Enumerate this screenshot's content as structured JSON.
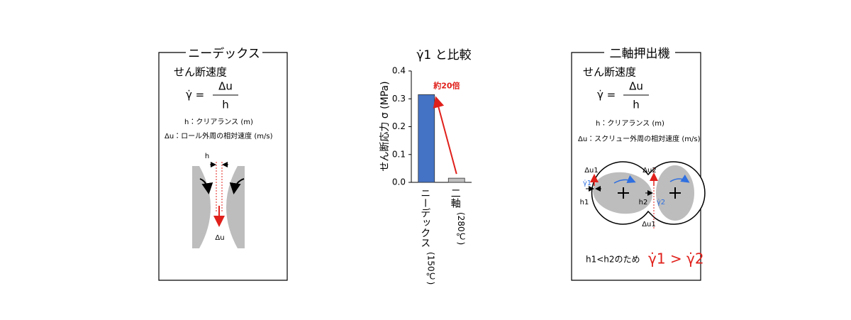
{
  "left_panel": {
    "title": "ニーデックス",
    "heading": "せん断速度",
    "formula": {
      "lhs": "γ̇ =",
      "numerator": "Δu",
      "denominator": "h"
    },
    "definitions": [
      "h：クリアランス (m)",
      "Δu：ロール外周の相対速度 (m/s)"
    ],
    "diagram": {
      "gap_label": "h",
      "velocity_label": "Δu"
    }
  },
  "chart_data": {
    "type": "bar",
    "title": "γ̇1 と比較",
    "y_label": "せん断応力 σ (MPa)",
    "categories": [
      "ニーデックス",
      "二軸"
    ],
    "category_notes": [
      "(150℃)",
      "(280℃)"
    ],
    "values": [
      0.315,
      0.015
    ],
    "colors": [
      "#4472c4",
      "#bfbfbf"
    ],
    "ylim": [
      0,
      0.4
    ],
    "yticks": [
      {
        "value": 0,
        "label": "0.0"
      },
      0.1,
      0.2,
      0.3,
      0.4
    ],
    "annotation": "約20倍"
  },
  "right_panel": {
    "title": "二軸押出機",
    "heading": "せん断速度",
    "formula": {
      "lhs": "γ̇ =",
      "numerator": "Δu",
      "denominator": "h"
    },
    "definitions": [
      "h：クリアランス (m)",
      "Δu：スクリュー外周の相対速度 (m/s)"
    ],
    "diagram": {
      "du1_top": "Δu1",
      "du2": "Δu2",
      "gamma1": "γ̇1",
      "gamma2": "γ̇2",
      "h1": "h1",
      "h2": "h2",
      "du1_bottom": "Δu1"
    },
    "conclusion": {
      "text": "h1<h2のため",
      "formula": "γ̇1 > γ̇2"
    }
  }
}
